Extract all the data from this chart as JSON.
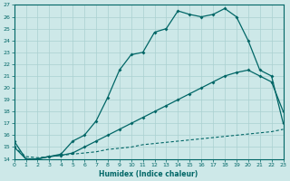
{
  "xlabel": "Humidex (Indice chaleur)",
  "xlim": [
    0,
    23
  ],
  "ylim": [
    14,
    27
  ],
  "yticks": [
    14,
    15,
    16,
    17,
    18,
    19,
    20,
    21,
    22,
    23,
    24,
    25,
    26,
    27
  ],
  "xticks": [
    0,
    1,
    2,
    3,
    4,
    5,
    6,
    7,
    8,
    9,
    10,
    11,
    12,
    13,
    14,
    15,
    16,
    17,
    18,
    19,
    20,
    21,
    22,
    23
  ],
  "bg_color": "#cde8e8",
  "line_color": "#006666",
  "grid_color": "#aad0d0",
  "line1_x": [
    0,
    1,
    2,
    3,
    4,
    5,
    6,
    7,
    8,
    9,
    10,
    11,
    12,
    13,
    14,
    15,
    16,
    17,
    18,
    19,
    20,
    21,
    22,
    23
  ],
  "line1_y": [
    15.5,
    14.0,
    14.0,
    14.2,
    14.4,
    15.5,
    16.0,
    17.2,
    19.2,
    21.5,
    22.8,
    23.0,
    24.7,
    25.0,
    26.5,
    26.2,
    26.0,
    26.2,
    26.7,
    26.0,
    24.0,
    21.5,
    21.0,
    17.0
  ],
  "line2_x": [
    0,
    1,
    2,
    3,
    4,
    5,
    6,
    7,
    8,
    9,
    10,
    11,
    12,
    13,
    14,
    15,
    16,
    17,
    18,
    19,
    20,
    21,
    22,
    23
  ],
  "line2_y": [
    15.0,
    14.0,
    14.0,
    14.2,
    14.3,
    14.5,
    15.0,
    15.5,
    16.0,
    16.5,
    17.0,
    17.5,
    18.0,
    18.5,
    19.0,
    19.5,
    20.0,
    20.5,
    21.0,
    21.3,
    21.5,
    21.0,
    20.5,
    18.0
  ],
  "line3_x": [
    0,
    1,
    2,
    3,
    4,
    5,
    6,
    7,
    8,
    9,
    10,
    11,
    12,
    13,
    14,
    15,
    16,
    17,
    18,
    19,
    20,
    21,
    22,
    23
  ],
  "line3_y": [
    15.0,
    14.2,
    14.1,
    14.2,
    14.3,
    14.4,
    14.5,
    14.6,
    14.8,
    14.9,
    15.0,
    15.2,
    15.3,
    15.4,
    15.5,
    15.6,
    15.7,
    15.8,
    15.9,
    16.0,
    16.1,
    16.2,
    16.3,
    16.5
  ]
}
